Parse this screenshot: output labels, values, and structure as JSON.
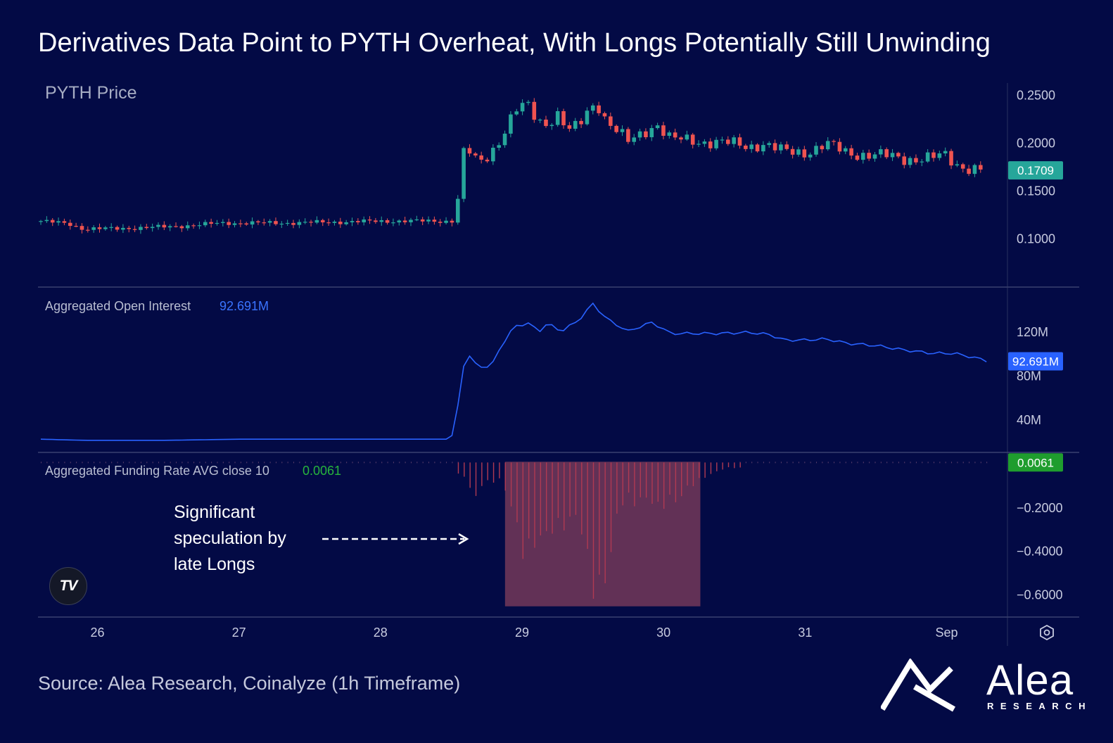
{
  "title": "Derivatives Data Point to PYTH Overheat, With Longs Potentially Still Unwinding",
  "source": "Source: Alea Research, Coinalyze (1h Timeframe)",
  "logo": {
    "word": "Alea",
    "sub": "RESEARCH"
  },
  "watermark": "TV",
  "colors": {
    "background": "#030a45",
    "up": "#26a69a",
    "down": "#ef5350",
    "oi_line": "#2962ff",
    "funding_bar": "#b03a52",
    "highlight": "#6d3558",
    "funding_badge": "#1f9d2e"
  },
  "chart_data": [
    {
      "type": "candlestick",
      "title": "PYTH Price",
      "y_ticks": [
        "0.2500",
        "0.2000",
        "0.1500",
        "0.1000"
      ],
      "ylim": [
        0.055,
        0.262
      ],
      "last_value": "0.1709",
      "x_ticks": [
        "26",
        "27",
        "28",
        "29",
        "30",
        "31",
        "Sep"
      ],
      "x_range_days": [
        25.58,
        32.43
      ],
      "series": [
        {
          "t": 25.6,
          "v": 0.118
        },
        {
          "t": 25.8,
          "v": 0.115
        },
        {
          "t": 25.9,
          "v": 0.11
        },
        {
          "t": 26.1,
          "v": 0.11
        },
        {
          "t": 26.5,
          "v": 0.112
        },
        {
          "t": 26.9,
          "v": 0.116
        },
        {
          "t": 27.3,
          "v": 0.116
        },
        {
          "t": 27.7,
          "v": 0.117
        },
        {
          "t": 28.05,
          "v": 0.118
        },
        {
          "t": 28.3,
          "v": 0.118
        },
        {
          "t": 28.53,
          "v": 0.118
        },
        {
          "t": 28.56,
          "v": 0.16
        },
        {
          "t": 28.6,
          "v": 0.2
        },
        {
          "t": 28.65,
          "v": 0.182
        },
        {
          "t": 28.72,
          "v": 0.18
        },
        {
          "t": 28.83,
          "v": 0.2
        },
        {
          "t": 28.95,
          "v": 0.232
        },
        {
          "t": 29.03,
          "v": 0.24
        },
        {
          "t": 29.1,
          "v": 0.225
        },
        {
          "t": 29.17,
          "v": 0.22
        },
        {
          "t": 29.25,
          "v": 0.23
        },
        {
          "t": 29.32,
          "v": 0.212
        },
        {
          "t": 29.4,
          "v": 0.216
        },
        {
          "t": 29.47,
          "v": 0.235
        },
        {
          "t": 29.53,
          "v": 0.242
        },
        {
          "t": 29.6,
          "v": 0.222
        },
        {
          "t": 29.67,
          "v": 0.212
        },
        {
          "t": 29.75,
          "v": 0.2
        },
        {
          "t": 29.85,
          "v": 0.21
        },
        {
          "t": 29.95,
          "v": 0.22
        },
        {
          "t": 30.05,
          "v": 0.203
        },
        {
          "t": 30.2,
          "v": 0.202
        },
        {
          "t": 30.4,
          "v": 0.2
        },
        {
          "t": 30.6,
          "v": 0.196
        },
        {
          "t": 30.7,
          "v": 0.199
        },
        {
          "t": 30.85,
          "v": 0.19
        },
        {
          "t": 31.0,
          "v": 0.19
        },
        {
          "t": 31.15,
          "v": 0.198
        },
        {
          "t": 31.3,
          "v": 0.189
        },
        {
          "t": 31.5,
          "v": 0.187
        },
        {
          "t": 31.7,
          "v": 0.183
        },
        {
          "t": 31.9,
          "v": 0.184
        },
        {
          "t": 32.0,
          "v": 0.186
        },
        {
          "t": 32.05,
          "v": 0.178
        },
        {
          "t": 32.15,
          "v": 0.174
        },
        {
          "t": 32.28,
          "v": 0.171
        }
      ]
    },
    {
      "type": "line",
      "title": "Aggregated Open Interest",
      "last_value": "92.691M",
      "y_ticks": [
        "120M",
        "80M",
        "40M"
      ],
      "ylim": [
        10,
        155
      ],
      "series": [
        {
          "t": 25.6,
          "v": 22
        },
        {
          "t": 25.9,
          "v": 21
        },
        {
          "t": 26.5,
          "v": 21
        },
        {
          "t": 27.0,
          "v": 22
        },
        {
          "t": 27.5,
          "v": 22
        },
        {
          "t": 28.0,
          "v": 22
        },
        {
          "t": 28.5,
          "v": 22
        },
        {
          "t": 28.55,
          "v": 55
        },
        {
          "t": 28.59,
          "v": 90
        },
        {
          "t": 28.63,
          "v": 97
        },
        {
          "t": 28.68,
          "v": 89
        },
        {
          "t": 28.78,
          "v": 87
        },
        {
          "t": 28.84,
          "v": 104
        },
        {
          "t": 28.95,
          "v": 125
        },
        {
          "t": 29.05,
          "v": 127
        },
        {
          "t": 29.12,
          "v": 120
        },
        {
          "t": 29.18,
          "v": 127
        },
        {
          "t": 29.28,
          "v": 120
        },
        {
          "t": 29.4,
          "v": 130
        },
        {
          "t": 29.5,
          "v": 145
        },
        {
          "t": 29.6,
          "v": 131
        },
        {
          "t": 29.75,
          "v": 120
        },
        {
          "t": 29.85,
          "v": 125
        },
        {
          "t": 29.92,
          "v": 128
        },
        {
          "t": 30.05,
          "v": 118
        },
        {
          "t": 30.25,
          "v": 118
        },
        {
          "t": 30.4,
          "v": 118
        },
        {
          "t": 30.6,
          "v": 119
        },
        {
          "t": 30.75,
          "v": 117
        },
        {
          "t": 30.85,
          "v": 112
        },
        {
          "t": 31.0,
          "v": 112
        },
        {
          "t": 31.15,
          "v": 113
        },
        {
          "t": 31.3,
          "v": 109
        },
        {
          "t": 31.5,
          "v": 107
        },
        {
          "t": 31.7,
          "v": 103
        },
        {
          "t": 31.9,
          "v": 100
        },
        {
          "t": 32.05,
          "v": 100
        },
        {
          "t": 32.2,
          "v": 96
        },
        {
          "t": 32.3,
          "v": 92.691
        }
      ]
    },
    {
      "type": "bar",
      "title": "Aggregated Funding Rate AVG close 10",
      "last_value": "0.0061",
      "y_ticks": [
        "−0.2000",
        "−0.4000",
        "−0.6000"
      ],
      "ylim": [
        -0.67,
        0.02
      ],
      "highlight_range_days": [
        28.88,
        30.26
      ],
      "series": [
        {
          "t": 28.6,
          "v": -0.06
        },
        {
          "t": 28.66,
          "v": -0.18
        },
        {
          "t": 28.72,
          "v": -0.1
        },
        {
          "t": 28.78,
          "v": -0.09
        },
        {
          "t": 28.84,
          "v": -0.08
        },
        {
          "t": 28.9,
          "v": -0.15
        },
        {
          "t": 28.96,
          "v": -0.3
        },
        {
          "t": 29.02,
          "v": -0.48
        },
        {
          "t": 29.08,
          "v": -0.4
        },
        {
          "t": 29.14,
          "v": -0.36
        },
        {
          "t": 29.2,
          "v": -0.33
        },
        {
          "t": 29.26,
          "v": -0.32
        },
        {
          "t": 29.32,
          "v": -0.3
        },
        {
          "t": 29.38,
          "v": -0.25
        },
        {
          "t": 29.44,
          "v": -0.38
        },
        {
          "t": 29.5,
          "v": -0.62
        },
        {
          "t": 29.56,
          "v": -0.64
        },
        {
          "t": 29.62,
          "v": -0.48
        },
        {
          "t": 29.68,
          "v": -0.22
        },
        {
          "t": 29.74,
          "v": -0.17
        },
        {
          "t": 29.8,
          "v": -0.2
        },
        {
          "t": 29.86,
          "v": -0.16
        },
        {
          "t": 29.92,
          "v": -0.19
        },
        {
          "t": 29.98,
          "v": -0.23
        },
        {
          "t": 30.04,
          "v": -0.17
        },
        {
          "t": 30.1,
          "v": -0.19
        },
        {
          "t": 30.16,
          "v": -0.12
        },
        {
          "t": 30.22,
          "v": -0.1
        },
        {
          "t": 30.28,
          "v": -0.07
        },
        {
          "t": 30.34,
          "v": -0.05
        },
        {
          "t": 30.4,
          "v": -0.03
        },
        {
          "t": 30.46,
          "v": -0.02
        }
      ],
      "annotation": "Significant speculation by late Longs"
    }
  ]
}
